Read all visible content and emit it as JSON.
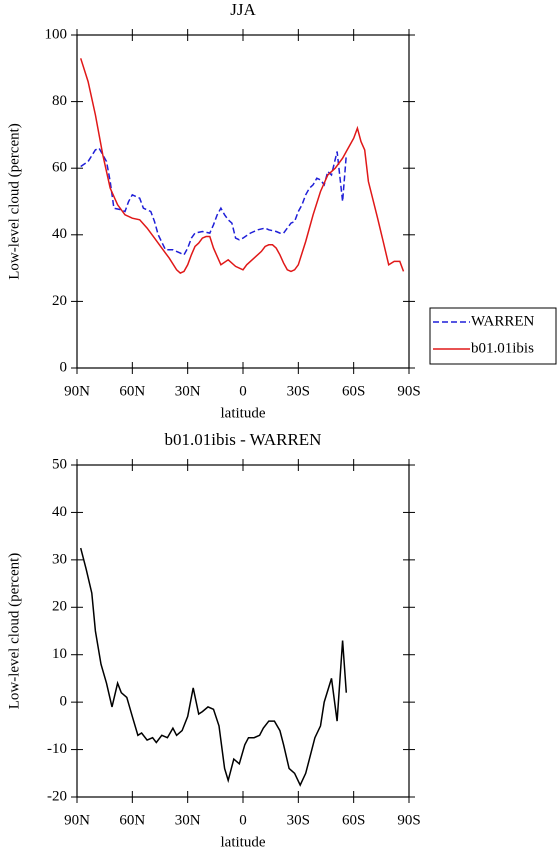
{
  "chart_data": [
    {
      "type": "line",
      "title": "JJA",
      "xlabel": "latitude",
      "ylabel": "Low-level cloud (percent)",
      "xlim": [
        90,
        -90
      ],
      "xticks": [
        {
          "value": 90,
          "label": "90N"
        },
        {
          "value": 60,
          "label": "60N"
        },
        {
          "value": 30,
          "label": "30N"
        },
        0,
        {
          "value": -30,
          "label": "30S"
        },
        {
          "value": -60,
          "label": "60S"
        },
        {
          "value": -90,
          "label": "90S"
        }
      ],
      "ylim": [
        0,
        100
      ],
      "yticks": [
        0,
        20,
        40,
        60,
        80,
        100
      ],
      "legend": "right",
      "series": [
        {
          "name": "WARREN",
          "color": "#1f1fd8",
          "style": "dashed",
          "x": [
            88,
            84,
            80,
            78,
            74,
            72,
            70,
            66,
            64,
            62,
            60,
            56,
            54,
            50,
            48,
            46,
            42,
            38,
            34,
            32,
            30,
            28,
            26,
            22,
            18,
            16,
            14,
            12,
            10,
            8,
            6,
            4,
            2,
            0,
            -4,
            -8,
            -12,
            -14,
            -18,
            -20,
            -22,
            -26,
            -28,
            -30,
            -32,
            -34,
            -36,
            -38,
            -40,
            -42,
            -44,
            -46,
            -48,
            -51,
            -54,
            -56
          ],
          "values": [
            60.5,
            62,
            65.5,
            66,
            62,
            56,
            48,
            47.5,
            47,
            50,
            52,
            51,
            48,
            47,
            44,
            40,
            35.5,
            35.5,
            34.5,
            34,
            36,
            39,
            40.5,
            41,
            40.5,
            43,
            46,
            48,
            46,
            44.5,
            43.5,
            39,
            38.5,
            39,
            40.5,
            41.5,
            42,
            41.5,
            41,
            40.5,
            40.5,
            43.5,
            44,
            47,
            49,
            52,
            54,
            55,
            57,
            56.5,
            55,
            59,
            58,
            65,
            50,
            64
          ]
        },
        {
          "name": "b01.01ibis",
          "color": "#e01818",
          "style": "solid",
          "x": [
            88,
            84,
            80,
            76,
            72,
            68,
            64,
            60,
            56,
            52,
            48,
            44,
            40,
            36,
            34,
            32,
            30,
            28,
            26,
            24,
            22,
            20,
            18,
            16,
            12,
            8,
            4,
            0,
            -2,
            -6,
            -10,
            -12,
            -14,
            -16,
            -18,
            -20,
            -22,
            -24,
            -26,
            -28,
            -30,
            -34,
            -38,
            -42,
            -46,
            -50,
            -54,
            -56,
            -58,
            -60,
            -62,
            -64,
            -66,
            -68,
            -73,
            -76,
            -79,
            -82,
            -85,
            -87
          ],
          "values": [
            93,
            86,
            76,
            64,
            54,
            49,
            46,
            45,
            44.5,
            42,
            39,
            36,
            33,
            29.5,
            28.5,
            29,
            31,
            34,
            36.5,
            37.5,
            39,
            39.5,
            39.5,
            36,
            31,
            32.5,
            30.5,
            29.5,
            31,
            33,
            35,
            36.5,
            37,
            37,
            36,
            34,
            31.5,
            29.5,
            29,
            29.5,
            31,
            38,
            46,
            53,
            58,
            60,
            63,
            65,
            67,
            69,
            72,
            68,
            65.5,
            56,
            45,
            38,
            31,
            32,
            32,
            29
          ]
        }
      ]
    },
    {
      "type": "line",
      "title": "b01.01ibis - WARREN",
      "xlabel": "latitude",
      "ylabel": "Low-level cloud (percent)",
      "xlim": [
        90,
        -90
      ],
      "xticks": [
        {
          "value": 90,
          "label": "90N"
        },
        {
          "value": 60,
          "label": "60N"
        },
        {
          "value": 30,
          "label": "30N"
        },
        0,
        {
          "value": -30,
          "label": "30S"
        },
        {
          "value": -60,
          "label": "60S"
        },
        {
          "value": -90,
          "label": "90S"
        }
      ],
      "ylim": [
        -20,
        50
      ],
      "yticks": [
        -20,
        -10,
        0,
        10,
        20,
        30,
        40,
        50
      ],
      "color": "#000000",
      "x": [
        88,
        85,
        82,
        80,
        77,
        74,
        71,
        68,
        66,
        63,
        60,
        57,
        55,
        52,
        49,
        47,
        44,
        41,
        38,
        36,
        33,
        30,
        27,
        24,
        22,
        19,
        16,
        13,
        10,
        8,
        5,
        2,
        -1,
        -3,
        -6,
        -9,
        -11,
        -14,
        -17,
        -20,
        -22,
        -25,
        -28,
        -31,
        -34,
        -36,
        -39,
        -42,
        -44,
        -48,
        -51,
        -54,
        -56
      ],
      "values": [
        32.5,
        28,
        23,
        15,
        8,
        4,
        -1,
        4,
        2,
        1,
        -3,
        -7,
        -6.5,
        -8,
        -7.5,
        -8.5,
        -7,
        -7.5,
        -5.5,
        -7,
        -6,
        -3,
        3,
        -2.5,
        -2,
        -1,
        -1.5,
        -5,
        -14,
        -16.5,
        -12,
        -13,
        -9,
        -7.5,
        -7.5,
        -7,
        -5.5,
        -4,
        -4,
        -6,
        -9,
        -14,
        -15,
        -17.5,
        -15,
        -12,
        -7.5,
        -5,
        0,
        5,
        -4,
        13,
        2
      ]
    }
  ]
}
